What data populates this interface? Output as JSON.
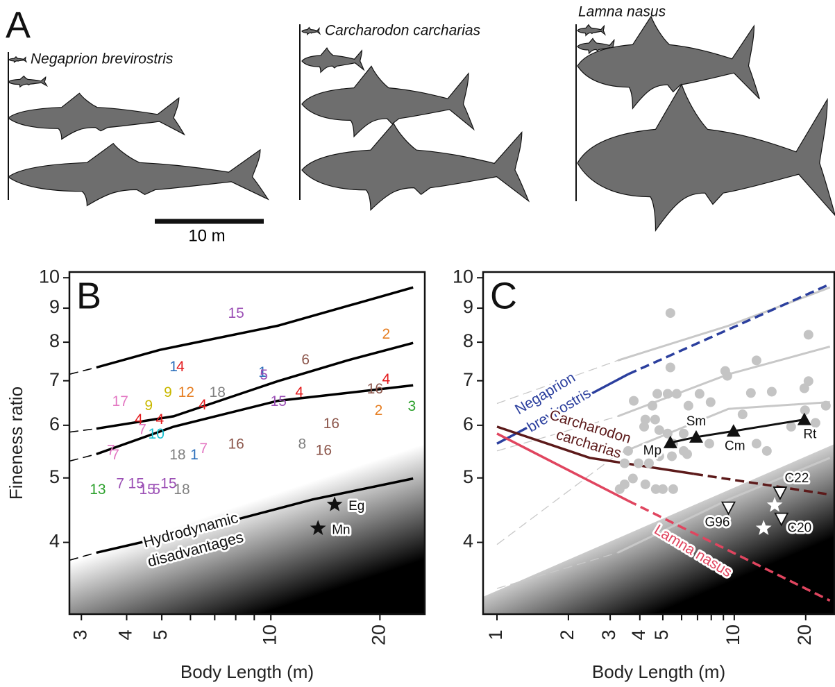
{
  "panel_a": {
    "label": "A",
    "species": [
      "Negaprion brevirostris",
      "Carcharodon carcharias",
      "Lamna nasus"
    ],
    "scale_label": "10 m"
  },
  "chart_data": [
    {
      "type": "scatter",
      "panel_label": "B",
      "x_label": "Body Length (m)",
      "y_label": "Fineness ratio",
      "log_x": true,
      "log_y": true,
      "xlim": [
        2.78,
        26.6
      ],
      "ylim": [
        3.12,
        10.2
      ],
      "xticks": [
        3,
        4,
        5,
        10,
        20
      ],
      "xminor_ticks": [
        6,
        7,
        8,
        9
      ],
      "yticks": [
        4,
        5,
        6,
        7,
        8,
        9,
        10
      ],
      "annotation": [
        "Hydrodynamic",
        "disadvantages"
      ],
      "lines": [
        {
          "color": "#000000",
          "dash": true,
          "width": 1.6,
          "x": [
            2.78,
            3.3
          ],
          "values": [
            7.16,
            7.33
          ]
        },
        {
          "color": "#000000",
          "dash": false,
          "width": 3.5,
          "x": [
            3.3,
            4.94,
            10.45,
            24.7
          ],
          "values": [
            7.33,
            7.79,
            8.47,
            9.67
          ]
        },
        {
          "color": "#000000",
          "dash": true,
          "width": 1.6,
          "x": [
            2.78,
            3.3
          ],
          "values": [
            5.86,
            5.93
          ]
        },
        {
          "color": "#000000",
          "dash": false,
          "width": 3.5,
          "x": [
            3.3,
            5.39,
            10.45,
            16.25,
            24.7
          ],
          "values": [
            5.93,
            6.19,
            6.99,
            7.51,
            7.98
          ]
        },
        {
          "color": "#000000",
          "dash": true,
          "width": 1.6,
          "x": [
            2.78,
            3.3
          ],
          "values": [
            5.3,
            5.43
          ]
        },
        {
          "color": "#000000",
          "dash": false,
          "width": 3.5,
          "x": [
            3.3,
            5.39,
            10.45,
            16.25,
            24.7
          ],
          "values": [
            5.43,
            5.97,
            6.53,
            6.71,
            6.89
          ]
        },
        {
          "color": "#000000",
          "dash": true,
          "width": 1.6,
          "x": [
            2.78,
            3.3
          ],
          "values": [
            3.76,
            3.86
          ]
        },
        {
          "color": "#000000",
          "dash": false,
          "width": 3.5,
          "x": [
            3.3,
            6.72,
            13.03,
            24.7
          ],
          "values": [
            3.86,
            4.22,
            4.64,
            4.99
          ]
        }
      ],
      "labeled_points": {
        "x": [
          8.02,
          20.81,
          5.39,
          5.63,
          9.48,
          9.57,
          12.47,
          3.84,
          4.6,
          5.2,
          5.84,
          7.12,
          6.49,
          10.5,
          11.98,
          19.39,
          20.81,
          19.83,
          24.5,
          4.32,
          4.94,
          4.42,
          4.83,
          14.69,
          3.62,
          3.72,
          5.53,
          6.15,
          6.52,
          8.02,
          12.2,
          13.99,
          3.33,
          3.84,
          4.25,
          4.56,
          4.83,
          5.22,
          5.68
        ],
        "values": [
          8.82,
          8.21,
          7.33,
          7.33,
          7.19,
          7.12,
          7.51,
          6.5,
          6.41,
          6.71,
          6.71,
          6.71,
          6.42,
          6.5,
          6.71,
          6.79,
          7.02,
          6.3,
          6.39,
          6.11,
          6.11,
          5.9,
          5.81,
          6.02,
          5.49,
          5.4,
          5.4,
          5.4,
          5.52,
          5.61,
          5.61,
          5.49,
          4.79,
          4.89,
          4.89,
          4.79,
          4.79,
          4.89,
          4.79
        ],
        "labels": [
          "15",
          "2",
          "1",
          "4",
          "1",
          "5",
          "6",
          "17",
          "9",
          "9",
          "12",
          "18",
          "4",
          "15",
          "4",
          "16",
          "4",
          "2",
          "3",
          "4",
          "4",
          "7",
          "10",
          "16",
          "7",
          "7",
          "18",
          "1",
          "7",
          "16",
          "8",
          "16",
          "13",
          "7",
          "15",
          "15",
          "5",
          "15",
          "18"
        ],
        "colors": [
          "#9b4fb5",
          "#e67e22",
          "#2c6fbb",
          "#e41a1c",
          "#2c6fbb",
          "#9b4fb5",
          "#8c564b",
          "#e377c2",
          "#c9b800",
          "#c9b800",
          "#e67e22",
          "#808080",
          "#e41a1c",
          "#9b4fb5",
          "#e41a1c",
          "#8c564b",
          "#e41a1c",
          "#e67e22",
          "#2ca02c",
          "#e41a1c",
          "#e41a1c",
          "#e377c2",
          "#17becf",
          "#8c564b",
          "#e377c2",
          "#e377c2",
          "#808080",
          "#2c6fbb",
          "#e377c2",
          "#8c564b",
          "#808080",
          "#8c564b",
          "#2ca02c",
          "#9b4fb5",
          "#9b4fb5",
          "#9b4fb5",
          "#9b4fb5",
          "#9b4fb5",
          "#808080"
        ]
      },
      "stars": {
        "x": [
          15.0,
          13.5
        ],
        "values": [
          4.56,
          4.2
        ],
        "labels": [
          "Eg",
          "Mn"
        ],
        "color": "#111111"
      }
    },
    {
      "type": "scatter",
      "panel_label": "C",
      "x_label": "Body Length (m)",
      "log_x": true,
      "log_y": true,
      "xlim": [
        0.874,
        26.4
      ],
      "ylim": [
        3.12,
        10.2
      ],
      "xticks": [
        1,
        2,
        3,
        4,
        5,
        10,
        20
      ],
      "xminor_ticks": [
        6,
        7,
        8,
        9
      ],
      "yticks": [
        4,
        5,
        6,
        7,
        8,
        9,
        10
      ],
      "lines": [
        {
          "color": "#c8c8c8",
          "dash": true,
          "width": 1.3,
          "x": [
            1,
            3.23
          ],
          "values": [
            6.47,
            7.51
          ]
        },
        {
          "color": "#c8c8c8",
          "dash": false,
          "width": 3,
          "x": [
            3.23,
            9.45,
            25.3
          ],
          "values": [
            7.51,
            8.47,
            9.67
          ]
        },
        {
          "color": "#c8c8c8",
          "dash": true,
          "width": 1.3,
          "x": [
            1,
            3.23
          ],
          "values": [
            5.49,
            6.19
          ]
        },
        {
          "color": "#c8c8c8",
          "dash": false,
          "width": 3,
          "x": [
            3.23,
            9.45,
            25.3
          ],
          "values": [
            6.19,
            7.16,
            7.88
          ]
        },
        {
          "color": "#c8c8c8",
          "dash": true,
          "width": 1.3,
          "x": [
            1,
            3.23
          ],
          "values": [
            3.97,
            5.43
          ]
        },
        {
          "color": "#c8c8c8",
          "dash": false,
          "width": 3,
          "x": [
            3.23,
            9.45,
            25.3
          ],
          "values": [
            5.43,
            6.35,
            6.5
          ]
        },
        {
          "color": "#c8c8c8",
          "dash": true,
          "width": 1.3,
          "x": [
            1,
            3.23
          ],
          "values": [
            3.41,
            3.86
          ]
        },
        {
          "color": "#c8c8c8",
          "dash": false,
          "width": 3,
          "x": [
            3.23,
            9.45,
            25.3
          ],
          "values": [
            3.86,
            4.64,
            5.36
          ]
        },
        {
          "color": "#2b3f9e",
          "dash": false,
          "width": 3.5,
          "x": [
            1,
            3.57
          ],
          "values": [
            5.63,
            7.16
          ],
          "label_lines": [
            "Negaprion",
            "brevirostris"
          ]
        },
        {
          "color": "#2b3f9e",
          "dash": true,
          "width": 3.5,
          "x": [
            3.57,
            25.3
          ],
          "values": [
            7.16,
            9.78
          ]
        },
        {
          "color": "#5c1a1a",
          "dash": false,
          "width": 3.5,
          "x": [
            1,
            2.46,
            6.77
          ],
          "values": [
            5.97,
            5.36,
            5.07
          ],
          "label_lines": [
            "Carcharodon",
            "carcharias"
          ]
        },
        {
          "color": "#5c1a1a",
          "dash": true,
          "width": 3.5,
          "x": [
            6.77,
            25.3
          ],
          "values": [
            5.07,
            4.72
          ]
        },
        {
          "color": "#e0455f",
          "dash": false,
          "width": 3.5,
          "x": [
            1,
            3.57
          ],
          "values": [
            5.83,
            4.62
          ],
          "label_lines": [
            "Lamna nasus"
          ]
        },
        {
          "color": "#e0455f",
          "dash": true,
          "width": 3.5,
          "x": [
            3.57,
            25.3
          ],
          "values": [
            4.62,
            3.27
          ]
        }
      ],
      "dots": {
        "color": "#c4c4c4",
        "x": [
          5.38,
          3.77,
          4.52,
          5.38,
          4.74,
          5.24,
          5.72,
          6.41,
          7.14,
          4.22,
          4.64,
          4.17,
          4.83,
          5.24,
          6.12,
          5.53,
          6.12,
          6.33,
          7.95,
          9.16,
          9.35,
          12.41,
          11.75,
          10.84,
          14.39,
          17.37,
          19.74,
          20.55,
          20.55,
          24.32,
          19.87,
          21.99,
          3.57,
          3.74,
          3.29,
          3.45,
          4.37,
          3.95,
          7.85,
          12.41,
          13.72,
          3.45,
          4.22,
          4.67,
          5.0,
          5.53,
          4.83,
          5.46
        ],
        "values": [
          8.85,
          6.53,
          6.42,
          7.33,
          6.69,
          6.69,
          6.69,
          6.42,
          6.69,
          6.12,
          6.12,
          5.97,
          5.9,
          5.83,
          5.83,
          5.63,
          5.49,
          5.43,
          6.5,
          7.24,
          7.12,
          7.51,
          6.71,
          6.23,
          6.74,
          5.97,
          6.82,
          6.99,
          8.21,
          6.42,
          6.32,
          6.05,
          5.49,
          4.99,
          4.81,
          5.26,
          5.26,
          5.26,
          5.63,
          5.63,
          5.49,
          4.89,
          4.89,
          4.81,
          4.81,
          4.81,
          5.39,
          5.39
        ]
      },
      "filled_triangles": {
        "color": "#111111",
        "x": [
          5.38,
          6.91,
          9.93,
          19.74
        ],
        "values": [
          5.65,
          5.76,
          5.88,
          6.12
        ],
        "labels": [
          "Mp",
          "Sm",
          "Cm",
          "Rt"
        ]
      },
      "open_triangles": {
        "color": "#ffffff",
        "x": [
          9.45,
          15.6,
          15.8
        ],
        "values": [
          4.51,
          4.75,
          4.34
        ],
        "labels": [
          "G96",
          "C22",
          "C20"
        ]
      },
      "stars": {
        "x": [
          14.8,
          13.3
        ],
        "values": [
          4.55,
          4.2
        ],
        "color": "#ffffff"
      }
    }
  ]
}
